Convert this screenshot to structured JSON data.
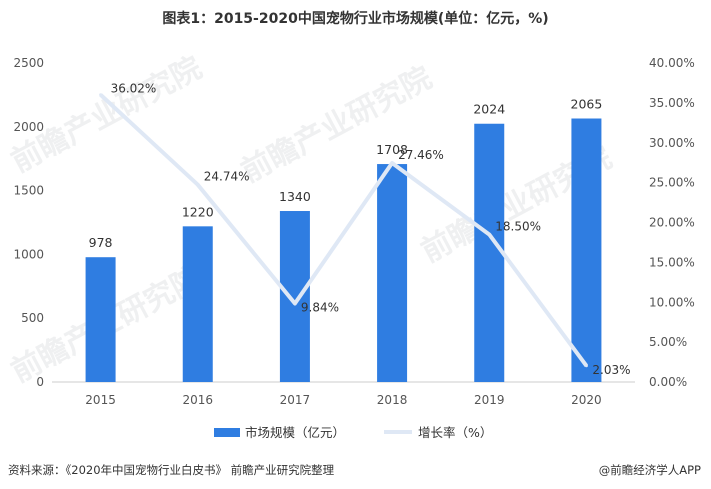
{
  "title": "图表1：2015-2020中国宠物行业市场规模(单位：亿元，%)",
  "chart_data": {
    "type": "bar",
    "categories": [
      "2015",
      "2016",
      "2017",
      "2018",
      "2019",
      "2020"
    ],
    "series": [
      {
        "name": "市场规模（亿元）",
        "type": "bar",
        "axis": "left",
        "values": [
          978,
          1220,
          1340,
          1708,
          2024,
          2065
        ],
        "labels": [
          "978",
          "1220",
          "1340",
          "1708",
          "2024",
          "2065"
        ]
      },
      {
        "name": "增长率（%）",
        "type": "line",
        "axis": "right",
        "values": [
          36.02,
          24.74,
          9.84,
          27.46,
          18.5,
          2.03
        ],
        "labels": [
          "36.02%",
          "24.74%",
          "9.84%",
          "27.46%",
          "18.50%",
          "2.03%"
        ]
      }
    ],
    "y_left": {
      "lim": [
        0,
        2500
      ],
      "ticks": [
        "0",
        "500",
        "1000",
        "1500",
        "2000",
        "2500"
      ]
    },
    "y_right": {
      "lim": [
        0,
        40
      ],
      "ticks": [
        "0.00%",
        "5.00%",
        "10.00%",
        "15.00%",
        "20.00%",
        "25.00%",
        "30.00%",
        "35.00%",
        "40.00%"
      ]
    },
    "legend_position": "bottom",
    "grid": false
  },
  "colors": {
    "bar": "#2f7de1",
    "line": "#dfe8f5",
    "axis_text": "#555555"
  },
  "footer": {
    "source": "资料来源：《2020年中国宠物行业白皮书》 前瞻产业研究院整理",
    "brand": "@前瞻经济学人APP"
  },
  "watermark": "前瞻产业研究院"
}
